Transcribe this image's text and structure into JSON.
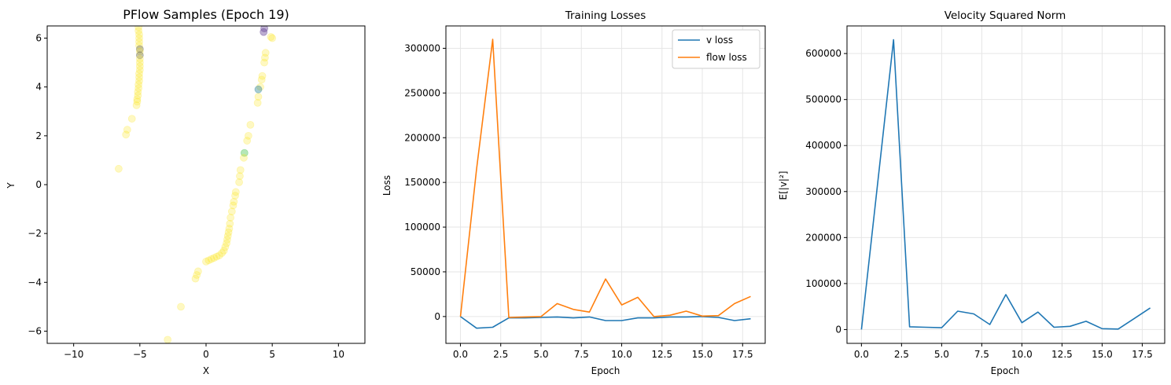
{
  "chart_data": [
    {
      "type": "scatter",
      "title": "PFlow Samples (Epoch 19)",
      "xlabel": "X",
      "ylabel": "Y",
      "xlim": [
        -12,
        12
      ],
      "ylim": [
        -6.5,
        6.5
      ],
      "xticks": [
        -10,
        -5,
        0,
        5,
        10
      ],
      "yticks": [
        -6,
        -4,
        -2,
        0,
        2,
        4,
        6
      ],
      "grid": false,
      "colors": {
        "dense": "#fde725",
        "purple": "#6b4c9a",
        "teal": "#3b8fa0",
        "green": "#5ec962",
        "gray": "#7a7a5a"
      },
      "points": [
        {
          "x": -5.1,
          "y": 6.45,
          "c": "dense"
        },
        {
          "x": -5.1,
          "y": 6.3,
          "c": "dense"
        },
        {
          "x": -5.05,
          "y": 6.15,
          "c": "dense"
        },
        {
          "x": -5.05,
          "y": 6.0,
          "c": "dense"
        },
        {
          "x": -5.05,
          "y": 5.85,
          "c": "dense"
        },
        {
          "x": -5.05,
          "y": 5.7,
          "c": "dense"
        },
        {
          "x": -5.0,
          "y": 5.55,
          "c": "gray"
        },
        {
          "x": -5.0,
          "y": 5.45,
          "c": "dense"
        },
        {
          "x": -5.0,
          "y": 5.3,
          "c": "gray"
        },
        {
          "x": -5.0,
          "y": 5.15,
          "c": "dense"
        },
        {
          "x": -5.0,
          "y": 5.0,
          "c": "dense"
        },
        {
          "x": -5.0,
          "y": 4.85,
          "c": "dense"
        },
        {
          "x": -5.0,
          "y": 4.7,
          "c": "dense"
        },
        {
          "x": -5.05,
          "y": 4.55,
          "c": "dense"
        },
        {
          "x": -5.05,
          "y": 4.4,
          "c": "dense"
        },
        {
          "x": -5.05,
          "y": 4.25,
          "c": "dense"
        },
        {
          "x": -5.1,
          "y": 4.1,
          "c": "dense"
        },
        {
          "x": -5.1,
          "y": 3.95,
          "c": "dense"
        },
        {
          "x": -5.15,
          "y": 3.8,
          "c": "dense"
        },
        {
          "x": -5.15,
          "y": 3.65,
          "c": "dense"
        },
        {
          "x": -5.2,
          "y": 3.5,
          "c": "dense"
        },
        {
          "x": -5.2,
          "y": 3.4,
          "c": "dense"
        },
        {
          "x": -5.25,
          "y": 3.25,
          "c": "dense"
        },
        {
          "x": -5.6,
          "y": 2.7,
          "c": "dense"
        },
        {
          "x": -5.95,
          "y": 2.25,
          "c": "dense"
        },
        {
          "x": -6.05,
          "y": 2.05,
          "c": "dense"
        },
        {
          "x": -6.6,
          "y": 0.65,
          "c": "dense"
        },
        {
          "x": 4.4,
          "y": 6.4,
          "c": "purple"
        },
        {
          "x": 4.35,
          "y": 6.25,
          "c": "purple"
        },
        {
          "x": 4.9,
          "y": 6.05,
          "c": "dense"
        },
        {
          "x": 5.0,
          "y": 6.0,
          "c": "dense"
        },
        {
          "x": 4.5,
          "y": 5.4,
          "c": "dense"
        },
        {
          "x": 4.45,
          "y": 5.2,
          "c": "dense"
        },
        {
          "x": 4.4,
          "y": 5.0,
          "c": "dense"
        },
        {
          "x": 4.25,
          "y": 4.45,
          "c": "dense"
        },
        {
          "x": 4.2,
          "y": 4.3,
          "c": "dense"
        },
        {
          "x": 4.1,
          "y": 4.0,
          "c": "dense"
        },
        {
          "x": 3.95,
          "y": 3.6,
          "c": "dense"
        },
        {
          "x": 3.9,
          "y": 3.35,
          "c": "dense"
        },
        {
          "x": 3.95,
          "y": 3.9,
          "c": "teal"
        },
        {
          "x": 3.35,
          "y": 2.45,
          "c": "dense"
        },
        {
          "x": 3.2,
          "y": 2.0,
          "c": "dense"
        },
        {
          "x": 3.1,
          "y": 1.8,
          "c": "dense"
        },
        {
          "x": 2.9,
          "y": 1.3,
          "c": "green"
        },
        {
          "x": 2.85,
          "y": 1.1,
          "c": "dense"
        },
        {
          "x": 2.6,
          "y": 0.6,
          "c": "dense"
        },
        {
          "x": 2.55,
          "y": 0.35,
          "c": "dense"
        },
        {
          "x": 2.5,
          "y": 0.1,
          "c": "dense"
        },
        {
          "x": 2.25,
          "y": -0.3,
          "c": "dense"
        },
        {
          "x": 2.2,
          "y": -0.45,
          "c": "dense"
        },
        {
          "x": 2.1,
          "y": -0.7,
          "c": "dense"
        },
        {
          "x": 2.05,
          "y": -0.85,
          "c": "dense"
        },
        {
          "x": 1.95,
          "y": -1.1,
          "c": "dense"
        },
        {
          "x": 1.85,
          "y": -1.35,
          "c": "dense"
        },
        {
          "x": 1.8,
          "y": -1.6,
          "c": "dense"
        },
        {
          "x": 1.75,
          "y": -1.8,
          "c": "dense"
        },
        {
          "x": 1.7,
          "y": -1.95,
          "c": "dense"
        },
        {
          "x": 1.65,
          "y": -2.1,
          "c": "dense"
        },
        {
          "x": 1.6,
          "y": -2.25,
          "c": "dense"
        },
        {
          "x": 1.55,
          "y": -2.4,
          "c": "dense"
        },
        {
          "x": 1.45,
          "y": -2.55,
          "c": "dense"
        },
        {
          "x": 1.35,
          "y": -2.7,
          "c": "dense"
        },
        {
          "x": 1.2,
          "y": -2.8,
          "c": "dense"
        },
        {
          "x": 1.0,
          "y": -2.9,
          "c": "dense"
        },
        {
          "x": 0.8,
          "y": -2.95,
          "c": "dense"
        },
        {
          "x": 0.6,
          "y": -3.0,
          "c": "dense"
        },
        {
          "x": 0.4,
          "y": -3.05,
          "c": "dense"
        },
        {
          "x": 0.2,
          "y": -3.1,
          "c": "dense"
        },
        {
          "x": 0.0,
          "y": -3.15,
          "c": "dense"
        },
        {
          "x": -0.6,
          "y": -3.55,
          "c": "dense"
        },
        {
          "x": -0.7,
          "y": -3.7,
          "c": "dense"
        },
        {
          "x": -0.8,
          "y": -3.85,
          "c": "dense"
        },
        {
          "x": -1.9,
          "y": -5.0,
          "c": "dense"
        },
        {
          "x": -2.9,
          "y": -6.35,
          "c": "dense"
        }
      ]
    },
    {
      "type": "line",
      "title": "Training Losses",
      "xlabel": "Epoch",
      "ylabel": "Loss",
      "xlim": [
        -0.9,
        18.9
      ],
      "ylim": [
        -30000,
        325000
      ],
      "xticks": [
        "0.0",
        "2.5",
        "5.0",
        "7.5",
        "10.0",
        "12.5",
        "15.0",
        "17.5"
      ],
      "yticks": [
        "0",
        "50000",
        "100000",
        "150000",
        "200000",
        "250000",
        "300000"
      ],
      "grid": true,
      "legend_position": "upper right",
      "x": [
        0,
        1,
        2,
        3,
        4,
        5,
        6,
        7,
        8,
        9,
        10,
        11,
        12,
        13,
        14,
        15,
        16,
        17,
        18
      ],
      "series": [
        {
          "name": "v loss",
          "color": "#1f77b4",
          "values": [
            0,
            -13000,
            -12000,
            -1500,
            -1500,
            -1000,
            -500,
            -1500,
            -500,
            -4500,
            -4500,
            -1500,
            -1500,
            -500,
            -500,
            0,
            -1000,
            -4500,
            -2500
          ]
        },
        {
          "name": "flow loss",
          "color": "#ff7f0e",
          "values": [
            0,
            165000,
            310000,
            -1000,
            -500,
            0,
            14500,
            8000,
            5000,
            42000,
            13000,
            21500,
            0,
            1500,
            6000,
            500,
            1000,
            14500,
            22500
          ]
        }
      ]
    },
    {
      "type": "line",
      "title": "Velocity Squared Norm",
      "xlabel": "Epoch",
      "ylabel": "E[|v|²]",
      "xlim": [
        -0.9,
        18.9
      ],
      "ylim": [
        -30000,
        660000
      ],
      "xticks": [
        "0.0",
        "2.5",
        "5.0",
        "7.5",
        "10.0",
        "12.5",
        "15.0",
        "17.5"
      ],
      "yticks": [
        "0",
        "100000",
        "200000",
        "300000",
        "400000",
        "500000",
        "600000"
      ],
      "grid": true,
      "x": [
        0,
        1,
        2,
        3,
        4,
        5,
        6,
        7,
        8,
        9,
        10,
        11,
        12,
        13,
        14,
        15,
        16,
        17,
        18
      ],
      "series": [
        {
          "color": "#1f77b4",
          "values": [
            0,
            315000,
            630000,
            6000,
            5000,
            4000,
            40000,
            34000,
            11000,
            76000,
            15000,
            38000,
            5000,
            7000,
            18000,
            2000,
            1000,
            24000,
            47000
          ]
        }
      ]
    }
  ]
}
